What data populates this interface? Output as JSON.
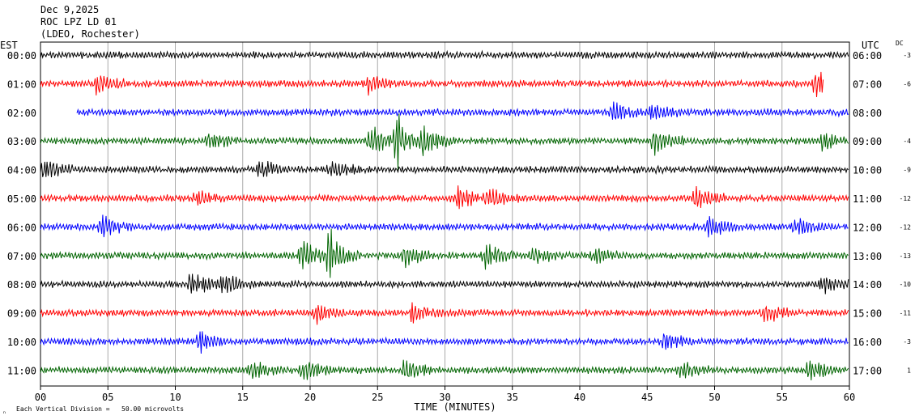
{
  "header": {
    "date": "Dec 9,2025",
    "station": "ROC LPZ LD 01",
    "network": "(LDEO, Rochester)"
  },
  "left_axis_title": "EST",
  "right_axis_title": "UTC",
  "dc_title": "DC",
  "footer": {
    "scale_mark": "ₙ",
    "scale_text": "Each Vertical Division =   50.00 microvolts"
  },
  "colors": {
    "black": "#000000",
    "red": "#ff0000",
    "blue": "#0000ff",
    "green": "#006400",
    "grid": "#aaaaaa"
  },
  "chart_data": {
    "type": "line",
    "title": "Dec 9,2025",
    "xlabel": "TIME (MINUTES)",
    "ylabel": "EST",
    "xlim": [
      0,
      60
    ],
    "x_ticks": [
      "00",
      "05",
      "10",
      "15",
      "20",
      "25",
      "30",
      "35",
      "40",
      "45",
      "50",
      "55",
      "60"
    ],
    "grid": true,
    "series": [
      {
        "est": "00:00",
        "utc": "06:00",
        "dc": "-3",
        "color": "black",
        "start": 0,
        "end": 60,
        "events": []
      },
      {
        "est": "01:00",
        "utc": "07:00",
        "dc": "-6",
        "color": "red",
        "start": 0,
        "end": 58.1,
        "events": [
          [
            4.2,
            2.0
          ],
          [
            24.3,
            1.7
          ],
          [
            57.5,
            2.0
          ]
        ]
      },
      {
        "est": "02:00",
        "utc": "08:00",
        "dc": "",
        "color": "blue",
        "start": 2.7,
        "end": 60,
        "events": [
          [
            42.5,
            1.7
          ],
          [
            45.3,
            1.6
          ]
        ]
      },
      {
        "est": "03:00",
        "utc": "09:00",
        "dc": "-4",
        "color": "green",
        "start": 0,
        "end": 60,
        "events": [
          [
            12.5,
            1.6
          ],
          [
            24.5,
            2.6
          ],
          [
            26.5,
            2.8
          ],
          [
            28.5,
            2.2
          ],
          [
            45.5,
            2.0
          ],
          [
            58,
            1.6
          ]
        ]
      },
      {
        "est": "04:00",
        "utc": "10:00",
        "dc": "-9",
        "color": "black",
        "start": 0,
        "end": 60,
        "events": [
          [
            0.3,
            1.8
          ],
          [
            16.3,
            1.6
          ],
          [
            21.5,
            1.6
          ]
        ]
      },
      {
        "est": "05:00",
        "utc": "11:00",
        "dc": "-12",
        "color": "red",
        "start": 0,
        "end": 60,
        "events": [
          [
            11.5,
            1.6
          ],
          [
            31,
            1.9
          ],
          [
            33.3,
            1.7
          ],
          [
            48.6,
            1.9
          ]
        ]
      },
      {
        "est": "06:00",
        "utc": "12:00",
        "dc": "-12",
        "color": "blue",
        "start": 0,
        "end": 60,
        "events": [
          [
            4.6,
            1.8
          ],
          [
            49.6,
            1.8
          ],
          [
            56,
            1.8
          ]
        ]
      },
      {
        "est": "07:00",
        "utc": "13:00",
        "dc": "-13",
        "color": "green",
        "start": 0,
        "end": 60,
        "events": [
          [
            19.4,
            2.7
          ],
          [
            21.5,
            2.8
          ],
          [
            27,
            2.0
          ],
          [
            33,
            2.2
          ],
          [
            36.5,
            1.6
          ],
          [
            41,
            1.5
          ]
        ]
      },
      {
        "est": "08:00",
        "utc": "14:00",
        "dc": "-10",
        "color": "black",
        "start": 0,
        "end": 60,
        "events": [
          [
            11.2,
            2.2
          ],
          [
            13.6,
            1.9
          ],
          [
            58,
            1.6
          ]
        ]
      },
      {
        "est": "09:00",
        "utc": "15:00",
        "dc": "-11",
        "color": "red",
        "start": 0,
        "end": 60,
        "events": [
          [
            20.5,
            1.8
          ],
          [
            27.6,
            1.7
          ],
          [
            53.7,
            1.7
          ]
        ]
      },
      {
        "est": "10:00",
        "utc": "16:00",
        "dc": "-3",
        "color": "blue",
        "start": 0,
        "end": 60,
        "events": [
          [
            11.8,
            1.8
          ],
          [
            46.2,
            1.8
          ]
        ]
      },
      {
        "est": "11:00",
        "utc": "17:00",
        "dc": "1",
        "color": "green",
        "start": 0,
        "end": 60,
        "events": [
          [
            15.7,
            1.7
          ],
          [
            19.5,
            1.8
          ],
          [
            27,
            1.8
          ],
          [
            47.5,
            1.6
          ],
          [
            57,
            1.7
          ]
        ]
      }
    ]
  }
}
